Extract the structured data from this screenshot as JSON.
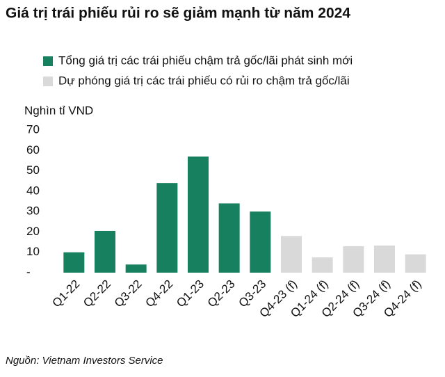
{
  "chart_data": {
    "type": "bar",
    "title": "Giá trị trái phiếu rủi ro sẽ giảm mạnh từ năm 2024",
    "y_label": "Nghìn tỉ VND",
    "source": "Nguồn: Vietnam Investors Service",
    "categories": [
      "Q1-22",
      "Q2-22",
      "Q3-22",
      "Q4-22",
      "Q1-23",
      "Q2-23",
      "Q3-23",
      "Q4-23 (f)",
      "Q1-24 (f)",
      "Q2-24 (f)",
      "Q3-24 (f)",
      "Q4-24 (f)"
    ],
    "series": [
      {
        "name": "Tổng giá trị các trái phiếu chậm trả gốc/lãi phát sinh mới",
        "color": "#17805f",
        "values": [
          10,
          20.5,
          4,
          44,
          57,
          34,
          30,
          null,
          null,
          null,
          null,
          null
        ]
      },
      {
        "name": "Dự phóng giá trị các trái phiếu có rủi ro chậm trả gốc/lãi",
        "color": "#d9d9d9",
        "values": [
          null,
          null,
          null,
          null,
          null,
          null,
          null,
          18,
          7.5,
          13,
          13.3,
          9
        ]
      }
    ],
    "ylim": [
      0,
      70
    ],
    "yticks": [
      {
        "value": 0,
        "label": "-"
      },
      10,
      20,
      30,
      40,
      50,
      60,
      70
    ]
  }
}
